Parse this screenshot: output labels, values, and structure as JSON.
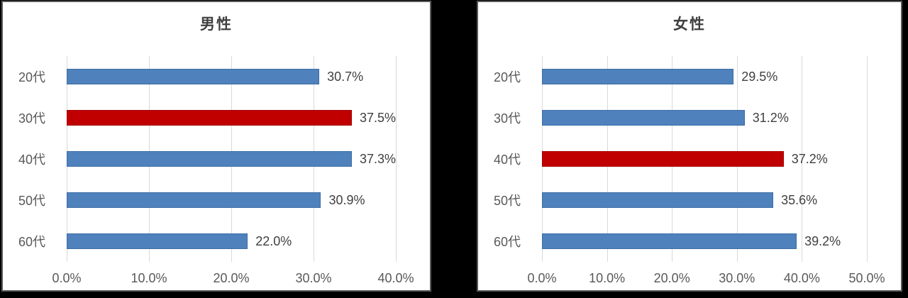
{
  "colors": {
    "canvas_background": "#000000",
    "panel_background": "#FFFFFF",
    "panel_border": "#595959",
    "gridline": "#D9D9D9",
    "axis_text": "#595959",
    "value_text": "#404040",
    "title_text": "#404040"
  },
  "chart_data": [
    {
      "type": "bar",
      "orientation": "horizontal",
      "title": "男性",
      "categories": [
        "20代",
        "30代",
        "40代",
        "50代",
        "60代"
      ],
      "values": [
        30.7,
        37.5,
        37.3,
        30.9,
        22.0
      ],
      "value_labels": [
        "30.7%",
        "37.5%",
        "37.3%",
        "30.9%",
        "22.0%"
      ],
      "highlight_index": 1,
      "x_tick_labels": [
        "0.0%",
        "10.0%",
        "20.0%",
        "30.0%",
        "40.0%"
      ],
      "xlim": [
        0,
        40
      ],
      "grid": true,
      "legend": false,
      "bar_color": "#4F81BD",
      "bar_border": "#3D6DA3",
      "highlight_color": "#C00000",
      "highlight_border": "#A30000"
    },
    {
      "type": "bar",
      "orientation": "horizontal",
      "title": "女性",
      "categories": [
        "20代",
        "30代",
        "40代",
        "50代",
        "60代"
      ],
      "values": [
        29.5,
        31.2,
        37.2,
        35.6,
        39.2
      ],
      "value_labels": [
        "29.5%",
        "31.2%",
        "37.2%",
        "35.6%",
        "39.2%"
      ],
      "highlight_index": 2,
      "x_tick_labels": [
        "0.0%",
        "10.0%",
        "20.0%",
        "30.0%",
        "40.0%",
        "50.0%"
      ],
      "xlim": [
        0,
        50
      ],
      "grid": true,
      "legend": false,
      "bar_color": "#4F81BD",
      "bar_border": "#3D6DA3",
      "highlight_color": "#C00000",
      "highlight_border": "#A30000"
    }
  ]
}
